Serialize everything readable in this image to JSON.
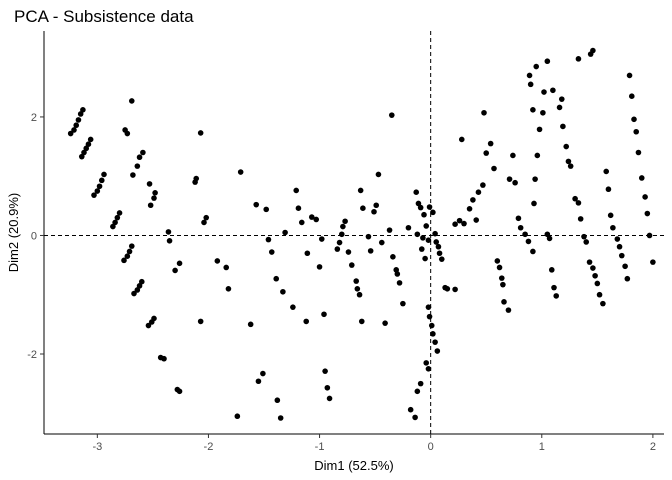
{
  "chart_data": {
    "type": "scatter",
    "title": "PCA - Subsistence data",
    "xlabel": "Dim1 (52.5%)",
    "ylabel": "Dim2 (20.9%)",
    "xlim": [
      -3.48,
      2.1
    ],
    "ylim": [
      -3.35,
      3.45
    ],
    "xticks": [
      -3,
      -2,
      -1,
      0,
      1,
      2
    ],
    "yticks": [
      -2,
      0,
      2
    ],
    "xtick_labels": [
      "-3",
      "-2",
      "-1",
      "0",
      "1",
      "2"
    ],
    "ytick_labels": [
      "-2",
      "0",
      "2"
    ],
    "reference_lines": {
      "x": 0,
      "y": 0,
      "style": "dashed"
    },
    "grid": false,
    "point_color": "#000000",
    "points": [
      [
        -3.24,
        1.72
      ],
      [
        -3.21,
        1.78
      ],
      [
        -3.19,
        1.86
      ],
      [
        -3.17,
        1.95
      ],
      [
        -3.15,
        2.05
      ],
      [
        -3.13,
        2.12
      ],
      [
        -3.14,
        1.33
      ],
      [
        -3.12,
        1.4
      ],
      [
        -3.1,
        1.47
      ],
      [
        -3.08,
        1.54
      ],
      [
        -3.06,
        1.62
      ],
      [
        -3.03,
        0.68
      ],
      [
        -3.0,
        0.75
      ],
      [
        -2.98,
        0.83
      ],
      [
        -2.96,
        0.93
      ],
      [
        -2.94,
        1.03
      ],
      [
        -2.86,
        0.15
      ],
      [
        -2.84,
        0.22
      ],
      [
        -2.82,
        0.3
      ],
      [
        -2.8,
        0.38
      ],
      [
        -2.76,
        -0.42
      ],
      [
        -2.73,
        -0.35
      ],
      [
        -2.71,
        -0.27
      ],
      [
        -2.69,
        -0.18
      ],
      [
        -2.67,
        -0.98
      ],
      [
        -2.64,
        -0.92
      ],
      [
        -2.62,
        -0.85
      ],
      [
        -2.6,
        -0.78
      ],
      [
        -2.54,
        -1.52
      ],
      [
        -2.51,
        -1.46
      ],
      [
        -2.49,
        -1.4
      ],
      [
        -2.43,
        -2.06
      ],
      [
        -2.4,
        -2.08
      ],
      [
        -2.28,
        -2.6
      ],
      [
        -2.26,
        -2.63
      ],
      [
        -2.75,
        1.78
      ],
      [
        -2.73,
        1.72
      ],
      [
        -2.69,
        2.27
      ],
      [
        -2.68,
        1.02
      ],
      [
        -2.64,
        1.17
      ],
      [
        -2.62,
        1.32
      ],
      [
        -2.59,
        1.4
      ],
      [
        -2.52,
        0.51
      ],
      [
        -2.49,
        0.63
      ],
      [
        -2.48,
        0.72
      ],
      [
        -2.53,
        0.87
      ],
      [
        -2.36,
        0.06
      ],
      [
        -2.35,
        -0.09
      ],
      [
        -2.3,
        -0.59
      ],
      [
        -2.26,
        -0.47
      ],
      [
        -2.07,
        1.73
      ],
      [
        -2.12,
        0.9
      ],
      [
        -2.11,
        0.96
      ],
      [
        -2.04,
        0.22
      ],
      [
        -2.02,
        0.3
      ],
      [
        -2.07,
        -1.45
      ],
      [
        -1.92,
        -0.43
      ],
      [
        -1.84,
        -0.54
      ],
      [
        -1.82,
        -0.9
      ],
      [
        -1.71,
        1.07
      ],
      [
        -1.74,
        -3.05
      ],
      [
        -1.62,
        -1.5
      ],
      [
        -1.57,
        0.52
      ],
      [
        -1.55,
        -2.46
      ],
      [
        -1.51,
        -2.33
      ],
      [
        -1.48,
        0.44
      ],
      [
        -1.46,
        -0.07
      ],
      [
        -1.43,
        -0.28
      ],
      [
        -1.39,
        -0.73
      ],
      [
        -1.38,
        -2.78
      ],
      [
        -1.35,
        -3.08
      ],
      [
        -1.33,
        -0.95
      ],
      [
        -1.31,
        0.05
      ],
      [
        -1.24,
        -1.21
      ],
      [
        -1.21,
        0.76
      ],
      [
        -1.19,
        0.46
      ],
      [
        -1.16,
        0.22
      ],
      [
        -1.12,
        -1.45
      ],
      [
        -1.11,
        -0.3
      ],
      [
        -1.07,
        0.31
      ],
      [
        -1.03,
        0.27
      ],
      [
        -1.0,
        -0.53
      ],
      [
        -0.98,
        -0.06
      ],
      [
        -0.96,
        -1.33
      ],
      [
        -0.95,
        -2.29
      ],
      [
        -0.93,
        -2.57
      ],
      [
        -0.91,
        -2.75
      ],
      [
        -0.84,
        -0.23
      ],
      [
        -0.82,
        -0.12
      ],
      [
        -0.8,
        0.02
      ],
      [
        -0.79,
        0.15
      ],
      [
        -0.77,
        0.24
      ],
      [
        -0.74,
        -0.28
      ],
      [
        -0.71,
        -0.5
      ],
      [
        -0.67,
        -0.77
      ],
      [
        -0.66,
        -0.9
      ],
      [
        -0.64,
        -1.0
      ],
      [
        -0.62,
        -1.45
      ],
      [
        -0.63,
        0.76
      ],
      [
        -0.61,
        0.46
      ],
      [
        -0.56,
        -0.02
      ],
      [
        -0.54,
        -0.26
      ],
      [
        -0.51,
        0.4
      ],
      [
        -0.49,
        0.51
      ],
      [
        -0.47,
        1.03
      ],
      [
        -0.44,
        -0.12
      ],
      [
        -0.41,
        -1.48
      ],
      [
        -0.37,
        0.09
      ],
      [
        -0.34,
        -0.36
      ],
      [
        -0.31,
        -0.58
      ],
      [
        -0.35,
        2.03
      ],
      [
        -0.3,
        -0.65
      ],
      [
        -0.28,
        -0.8
      ],
      [
        -0.25,
        -1.15
      ],
      [
        -0.2,
        0.13
      ],
      [
        -0.13,
        0.73
      ],
      [
        -0.11,
        0.54
      ],
      [
        -0.09,
        0.47
      ],
      [
        -0.06,
        0.35
      ],
      [
        -0.04,
        0.16
      ],
      [
        -0.02,
        -0.08
      ],
      [
        -0.08,
        -0.23
      ],
      [
        -0.05,
        -0.39
      ],
      [
        -0.02,
        -1.21
      ],
      [
        -0.01,
        -1.37
      ],
      [
        0.01,
        -1.52
      ],
      [
        0.02,
        -1.66
      ],
      [
        0.04,
        -1.8
      ],
      [
        0.06,
        -1.95
      ],
      [
        -0.04,
        -2.15
      ],
      [
        -0.02,
        -2.25
      ],
      [
        -0.09,
        -2.5
      ],
      [
        -0.12,
        -2.63
      ],
      [
        -0.14,
        -3.07
      ],
      [
        -0.18,
        -2.94
      ],
      [
        -0.12,
        0.02
      ],
      [
        -0.07,
        -0.04
      ],
      [
        -0.01,
        0.48
      ],
      [
        0.02,
        0.39
      ],
      [
        0.04,
        0.03
      ],
      [
        0.05,
        -0.11
      ],
      [
        0.07,
        -0.19
      ],
      [
        0.08,
        -0.3
      ],
      [
        0.1,
        -0.4
      ],
      [
        0.13,
        -0.88
      ],
      [
        0.15,
        -0.9
      ],
      [
        0.22,
        -0.91
      ],
      [
        0.22,
        0.19
      ],
      [
        0.26,
        0.25
      ],
      [
        0.28,
        1.62
      ],
      [
        0.3,
        0.2
      ],
      [
        0.35,
        0.45
      ],
      [
        0.38,
        0.6
      ],
      [
        0.41,
        0.26
      ],
      [
        0.43,
        0.73
      ],
      [
        0.47,
        0.85
      ],
      [
        0.48,
        2.07
      ],
      [
        0.5,
        1.39
      ],
      [
        0.54,
        1.55
      ],
      [
        0.57,
        1.13
      ],
      [
        0.6,
        -0.43
      ],
      [
        0.62,
        -0.54
      ],
      [
        0.64,
        -0.72
      ],
      [
        0.65,
        -0.83
      ],
      [
        0.66,
        -1.12
      ],
      [
        0.7,
        -1.26
      ],
      [
        0.71,
        0.95
      ],
      [
        0.74,
        1.35
      ],
      [
        0.76,
        0.89
      ],
      [
        0.79,
        0.29
      ],
      [
        0.81,
        0.13
      ],
      [
        0.85,
        0.02
      ],
      [
        0.88,
        -0.1
      ],
      [
        0.92,
        -0.27
      ],
      [
        0.93,
        0.54
      ],
      [
        0.94,
        0.95
      ],
      [
        0.96,
        1.35
      ],
      [
        0.98,
        1.79
      ],
      [
        1.01,
        2.07
      ],
      [
        1.02,
        2.42
      ],
      [
        1.05,
        0.02
      ],
      [
        1.07,
        -0.05
      ],
      [
        1.09,
        -0.58
      ],
      [
        1.11,
        -0.88
      ],
      [
        1.13,
        -1.02
      ],
      [
        1.16,
        2.16
      ],
      [
        1.19,
        1.84
      ],
      [
        1.22,
        1.5
      ],
      [
        1.24,
        1.25
      ],
      [
        1.26,
        1.17
      ],
      [
        1.3,
        0.62
      ],
      [
        1.33,
        0.55
      ],
      [
        1.35,
        0.28
      ],
      [
        1.38,
        -0.02
      ],
      [
        1.4,
        -0.11
      ],
      [
        1.43,
        -0.45
      ],
      [
        1.46,
        -0.55
      ],
      [
        1.48,
        -0.68
      ],
      [
        1.5,
        -0.81
      ],
      [
        1.52,
        -1.0
      ],
      [
        1.55,
        -1.15
      ],
      [
        1.58,
        1.08
      ],
      [
        1.6,
        0.78
      ],
      [
        1.62,
        0.34
      ],
      [
        1.64,
        0.13
      ],
      [
        1.68,
        -0.06
      ],
      [
        1.7,
        -0.19
      ],
      [
        1.72,
        -0.34
      ],
      [
        1.75,
        -0.52
      ],
      [
        1.77,
        -0.73
      ],
      [
        1.79,
        2.7
      ],
      [
        1.81,
        2.35
      ],
      [
        1.83,
        1.96
      ],
      [
        1.85,
        1.75
      ],
      [
        1.87,
        1.4
      ],
      [
        1.9,
        0.97
      ],
      [
        1.93,
        0.65
      ],
      [
        1.95,
        0.37
      ],
      [
        1.97,
        0.0
      ],
      [
        2.0,
        -0.45
      ],
      [
        1.46,
        3.12
      ],
      [
        1.44,
        3.06
      ],
      [
        1.33,
        2.98
      ],
      [
        1.05,
        2.94
      ],
      [
        0.95,
        2.85
      ],
      [
        0.89,
        2.7
      ],
      [
        0.9,
        2.55
      ],
      [
        1.1,
        2.45
      ],
      [
        1.18,
        2.3
      ],
      [
        0.92,
        2.12
      ]
    ]
  }
}
